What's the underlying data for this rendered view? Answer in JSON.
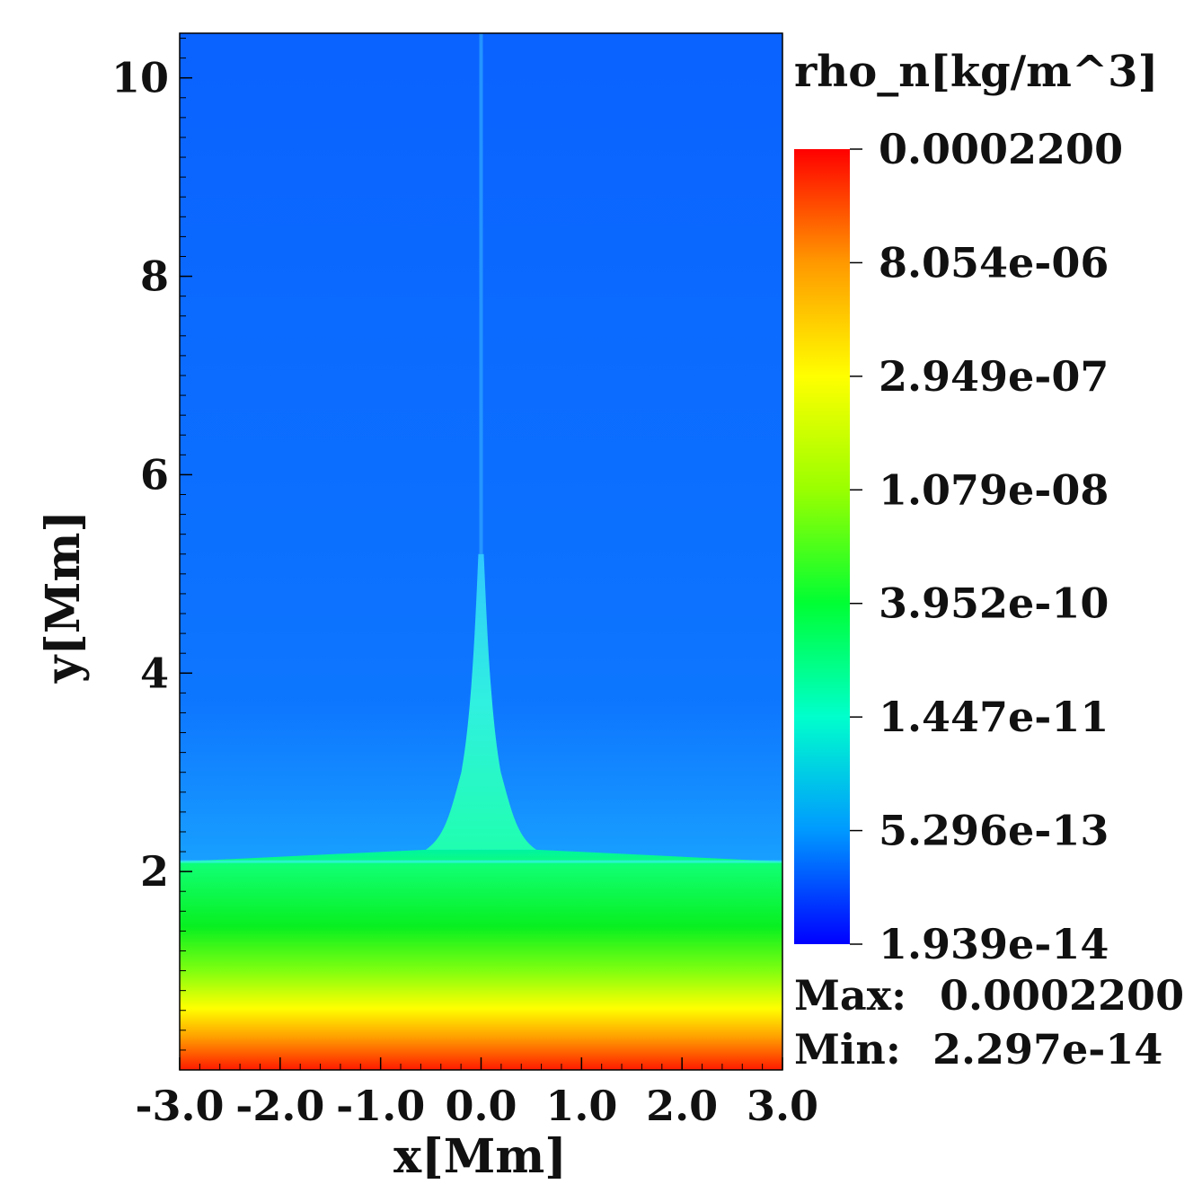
{
  "chart_data": {
    "type": "heatmap",
    "title": "",
    "xlabel": "x[Mm]",
    "ylabel": "y[Mm]",
    "xlim": [
      -3.0,
      3.0
    ],
    "ylim": [
      0,
      10.45
    ],
    "x_ticks": [
      {
        "value": -3.0,
        "label": "-3.0"
      },
      {
        "value": -2.0,
        "label": "-2.0"
      },
      {
        "value": -1.0,
        "label": "-1.0"
      },
      {
        "value": 0.0,
        "label": "0.0"
      },
      {
        "value": 1.0,
        "label": "1.0"
      },
      {
        "value": 2.0,
        "label": "2.0"
      },
      {
        "value": 3.0,
        "label": "3.0"
      }
    ],
    "y_ticks": [
      {
        "value": 2,
        "label": "2"
      },
      {
        "value": 4,
        "label": "4"
      },
      {
        "value": 6,
        "label": "6"
      },
      {
        "value": 8,
        "label": "8"
      },
      {
        "value": 10,
        "label": "10"
      }
    ],
    "colorbar": {
      "title": "rho_n[kg/m^3]",
      "scale": "log",
      "levels": [
        {
          "value": 0.00022,
          "label": "0.0002200",
          "color": "#ff0000"
        },
        {
          "value": 8.054e-06,
          "label": "8.054e-06",
          "color": "#ff9900"
        },
        {
          "value": 2.949e-07,
          "label": "2.949e-07",
          "color": "#ffff00"
        },
        {
          "value": 1.079e-08,
          "label": "1.079e-08",
          "color": "#99ff00"
        },
        {
          "value": 3.952e-10,
          "label": "3.952e-10",
          "color": "#00ff33"
        },
        {
          "value": 1.447e-11,
          "label": "1.447e-11",
          "color": "#00ffcc"
        },
        {
          "value": 5.296e-13,
          "label": "5.296e-13",
          "color": "#0099ff"
        },
        {
          "value": 1.939e-14,
          "label": "1.939e-14",
          "color": "#0000ff"
        }
      ]
    },
    "stats": {
      "max_label": "Max:",
      "max_value": "0.0002200",
      "min_label": "Min:",
      "min_value": "2.297e-14"
    },
    "field_description": {
      "upper_region_color": "#0a60ff",
      "layer_top_y": 2.1,
      "layer_color_top": "#10ff60",
      "layer_color_mid": "#ffff00",
      "layer_color_bottom": "#ff1a00",
      "jet_x": 0.0,
      "jet_top_y": 5.2,
      "jet_color": "#40e8d8"
    }
  }
}
